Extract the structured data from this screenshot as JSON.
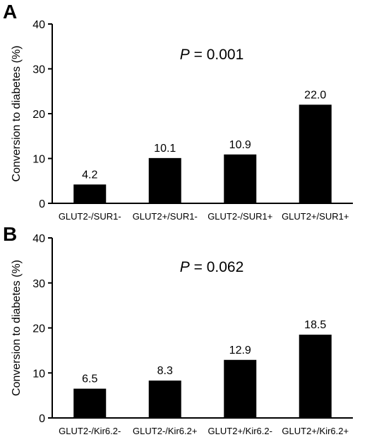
{
  "chart_data": [
    {
      "panel": "A",
      "type": "bar",
      "ylabel": "Conversion to diabetes (%)",
      "ylim": [
        0,
        40
      ],
      "yticks": [
        0,
        10,
        20,
        30,
        40
      ],
      "annotation": {
        "italic": "P",
        "rest": " = 0.001"
      },
      "categories": [
        "GLUT2-/SUR1-",
        "GLUT2+/SUR1-",
        "GLUT2-/SUR1+",
        "GLUT2+/SUR1+"
      ],
      "values": [
        4.2,
        10.1,
        10.9,
        22.0
      ],
      "value_labels": [
        "4.2",
        "10.1",
        "10.9",
        "22.0"
      ],
      "bar_color": "#000000"
    },
    {
      "panel": "B",
      "type": "bar",
      "ylabel": "Conversion to diabetes (%)",
      "ylim": [
        0,
        40
      ],
      "yticks": [
        0,
        10,
        20,
        30,
        40
      ],
      "annotation": {
        "italic": "P",
        "rest": " = 0.062"
      },
      "categories": [
        "GLUT2-/Kir6.2-",
        "GLUT2-/Kir6.2+",
        "GLUT2+/Kir6.2-",
        "GLUT2+/Kir6.2+"
      ],
      "values": [
        6.5,
        8.3,
        12.9,
        18.5
      ],
      "value_labels": [
        "6.5",
        "8.3",
        "12.9",
        "18.5"
      ],
      "bar_color": "#000000"
    }
  ]
}
